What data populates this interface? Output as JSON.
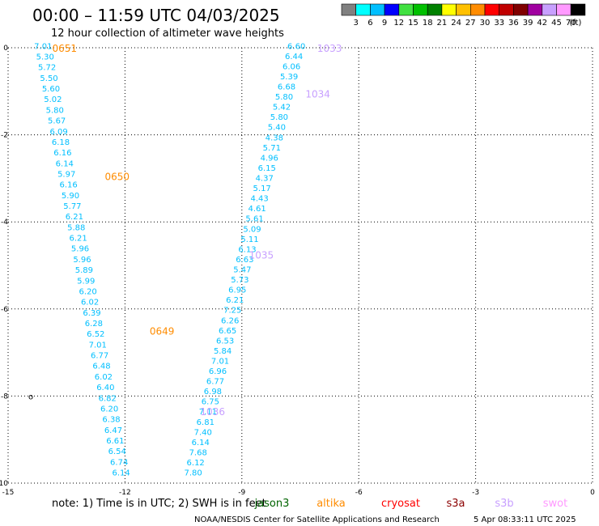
{
  "header": {
    "title": "00:00 – 11:59 UTC 04/03/2025",
    "subtitle": "12 hour collection of altimeter wave heights"
  },
  "footer": {
    "note": "note:  1) Time is in UTC;  2) SWH is in feet",
    "credit": "NOAA/NESDIS Center for Satellite Applications and Research",
    "timestamp": "5 Apr 08:33:11 UTC 2025"
  },
  "colorbar": {
    "labels": [
      "3",
      "6",
      "9",
      "12",
      "15",
      "18",
      "21",
      "24",
      "27",
      "30",
      "33",
      "36",
      "39",
      "42",
      "45",
      "70"
    ],
    "unit": "(ft)",
    "colors": [
      "#808080",
      "#00ffff",
      "#00bfff",
      "#0000ff",
      "#40e040",
      "#00c000",
      "#008000",
      "#ffff00",
      "#ffc000",
      "#ff8c00",
      "#ff0000",
      "#c00000",
      "#800000",
      "#a000a0",
      "#c8a0ff",
      "#ff99ff",
      "#000000"
    ]
  },
  "legend": [
    {
      "name": "jason3",
      "color": "#006400"
    },
    {
      "name": "altika",
      "color": "#ff8c00"
    },
    {
      "name": "cryosat",
      "color": "#ff0000"
    },
    {
      "name": "s3a",
      "color": "#8b0000"
    },
    {
      "name": "s3b",
      "color": "#c8a0ff"
    },
    {
      "name": "swot",
      "color": "#ff99ff"
    }
  ],
  "chart_data": {
    "type": "scatter",
    "xlim": [
      -15,
      0
    ],
    "ylim": [
      0,
      -10
    ],
    "xticks": [
      "-15",
      "-12",
      "-9",
      "-6",
      "-3",
      "0"
    ],
    "yticks": [
      "0",
      "-2",
      "-4",
      "-6",
      "-8",
      "-10"
    ],
    "grid": true,
    "point_color": "#00bfff",
    "tracks": [
      {
        "values": [
          "7.01",
          "5.30",
          "5.72",
          "5.50",
          "5.60",
          "5.02",
          "5.80",
          "5.67",
          "6.09",
          "6.18",
          "6.16",
          "6.14",
          "5.97",
          "6.16",
          "5.90",
          "5.77",
          "6.21",
          "5.88",
          "6.21",
          "5.96",
          "5.96",
          "5.89",
          "5.99",
          "6.20",
          "6.02",
          "6.39",
          "6.28",
          "6.52",
          "7.01",
          "6.77",
          "6.48",
          "6.02",
          "6.40",
          "6.82",
          "6.20",
          "6.38",
          "6.47",
          "6.61",
          "6.54",
          "6.74",
          "6.14"
        ],
        "x_start": -14.1,
        "x_end": -12.1,
        "y_start": 0.05,
        "y_end": -9.75,
        "times": [
          {
            "label": "0651",
            "color": "#ff8c00",
            "x": -13.55,
            "y": 0.0
          },
          {
            "label": "0650",
            "color": "#ff8c00",
            "x": -12.2,
            "y": -2.95
          },
          {
            "label": "0649",
            "color": "#ff8c00",
            "x": -11.05,
            "y": -6.5
          }
        ]
      },
      {
        "values": [
          "6.60",
          "6.44",
          "6.06",
          "5.39",
          "6.68",
          "5.80",
          "5.42",
          "5.80",
          "5.40",
          "4.38",
          "5.71",
          "4.96",
          "6.15",
          "4.37",
          "5.17",
          "4.43",
          "4.61",
          "5.61",
          "5.09",
          "5.11",
          "6.13",
          "6.63",
          "5.47",
          "5.73",
          "6.95",
          "6.21",
          "7.25",
          "6.26",
          "6.65",
          "6.53",
          "5.84",
          "7.01",
          "6.96",
          "6.77",
          "6.98",
          "6.75",
          "7.11",
          "6.81",
          "7.40",
          "6.14",
          "7.68",
          "6.12",
          "7.80"
        ],
        "x_start": -7.6,
        "x_end": -10.25,
        "y_start": 0.05,
        "y_end": -9.75,
        "times": [
          {
            "label": "1033",
            "color": "#c8a0ff",
            "x": -6.75,
            "y": 0.0
          },
          {
            "label": "1034",
            "color": "#c8a0ff",
            "x": -7.05,
            "y": -1.05
          },
          {
            "label": "1035",
            "color": "#c8a0ff",
            "x": -8.5,
            "y": -4.75
          },
          {
            "label": "1036",
            "color": "#c8a0ff",
            "x": -9.75,
            "y": -8.35
          }
        ]
      }
    ]
  }
}
